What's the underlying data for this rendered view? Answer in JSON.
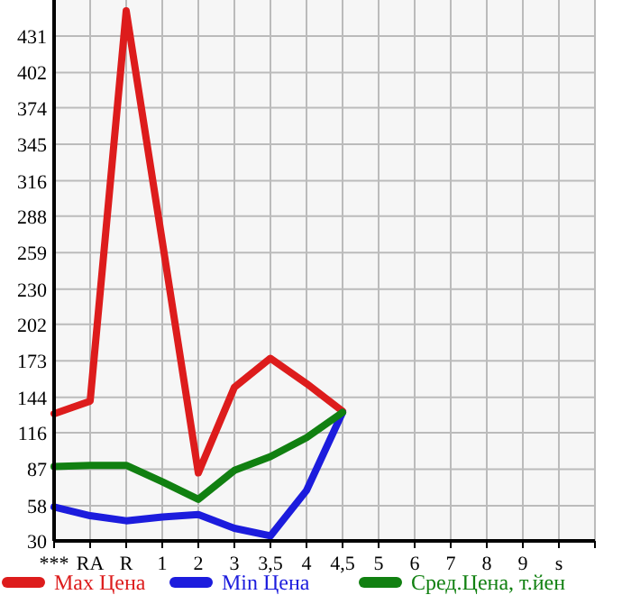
{
  "chart_data": {
    "type": "line",
    "categories": [
      "***",
      "RA",
      "R",
      "1",
      "2",
      "3",
      "3,5",
      "4",
      "4,5",
      "5",
      "6",
      "7",
      "8",
      "9",
      "s"
    ],
    "ylim": [
      30,
      459.6
    ],
    "yticks": [
      30,
      58,
      87,
      116,
      144,
      173,
      202,
      230,
      259,
      288,
      316,
      345,
      374,
      402,
      431
    ],
    "grid": true,
    "legend": "bottom",
    "marker": "none",
    "series": [
      {
        "name": "Max Цена",
        "color": "#dd1c1c",
        "values": [
          131,
          141,
          451,
          268,
          84,
          152,
          175,
          155,
          133,
          null,
          null,
          null,
          null,
          null,
          null
        ]
      },
      {
        "name": "Min Цена",
        "color": "#1c1cdd",
        "values": [
          57,
          50,
          46,
          49,
          51,
          40,
          34,
          70,
          132,
          null,
          null,
          null,
          null,
          null,
          null
        ]
      },
      {
        "name": "Сред.Цена, т.йен",
        "color": "#118011",
        "values": [
          89,
          90,
          90,
          77,
          63,
          86,
          97,
          112,
          132,
          null,
          null,
          null,
          null,
          null,
          null
        ]
      }
    ]
  }
}
